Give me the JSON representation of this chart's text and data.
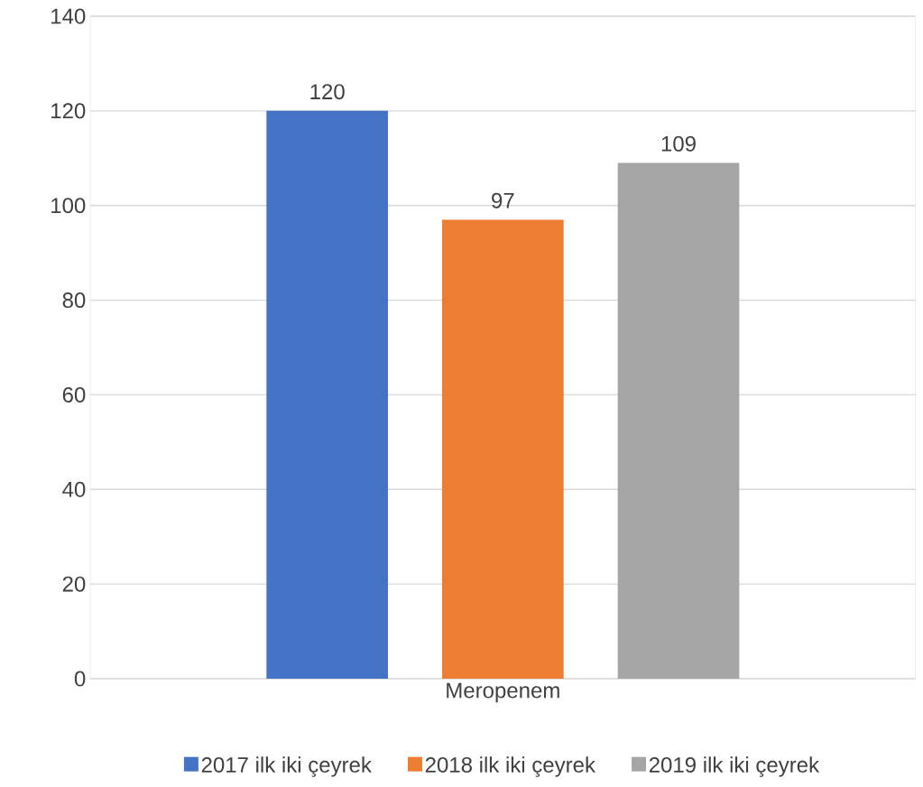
{
  "chart_data": {
    "type": "bar",
    "categories": [
      "Meropenem"
    ],
    "series": [
      {
        "name": "2017 ilk iki çeyrek",
        "color": "#4472c4",
        "values": [
          120
        ]
      },
      {
        "name": "2018 ilk iki çeyrek",
        "color": "#ed7d31",
        "values": [
          97
        ]
      },
      {
        "name": "2019 ilk iki çeyrek",
        "color": "#a5a5a5",
        "values": [
          109
        ]
      }
    ],
    "ylim": [
      0,
      140
    ],
    "yticks": [
      0,
      20,
      40,
      60,
      80,
      100,
      120,
      140
    ],
    "grid": "y",
    "legend": "bottom",
    "data_labels": true
  }
}
